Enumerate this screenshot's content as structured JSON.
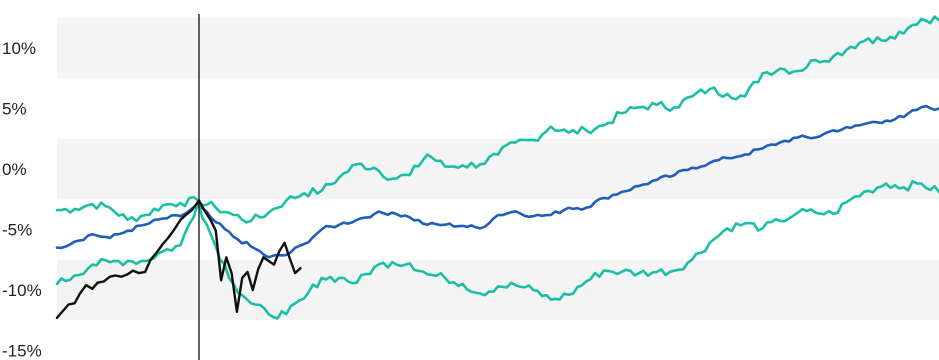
{
  "colors": {
    "band": "#f4f4f4",
    "upper": "#1bbfa5",
    "median": "#1f5fb8",
    "lower": "#1bbfa5",
    "actual": "#111111",
    "marker": "#111111"
  },
  "chart_data": {
    "type": "line",
    "title": "",
    "xlabel": "",
    "ylabel": "",
    "ylim": [
      -15,
      13
    ],
    "xlim": [
      0,
      100
    ],
    "y_ticks": [
      {
        "value": 10,
        "label": "10%"
      },
      {
        "value": 5,
        "label": "5%"
      },
      {
        "value": 0,
        "label": "0%"
      },
      {
        "value": -5,
        "label": "-5%"
      },
      {
        "value": -10,
        "label": "-10%"
      },
      {
        "value": -15,
        "label": "-15%"
      }
    ],
    "bands": [
      [
        7.5,
        12.5
      ],
      [
        -2.5,
        2.5
      ],
      [
        -12.5,
        -7.5
      ]
    ],
    "marker_x": 16.1,
    "series": [
      {
        "key": "upper",
        "points": [
          [
            0,
            -3.4
          ],
          [
            2,
            -3.3
          ],
          [
            4,
            -2.9
          ],
          [
            6,
            -3.2
          ],
          [
            8,
            -4.2
          ],
          [
            10,
            -3.8
          ],
          [
            12,
            -3.0
          ],
          [
            14,
            -2.8
          ],
          [
            16,
            -2.6
          ],
          [
            18,
            -3.2
          ],
          [
            20,
            -3.8
          ],
          [
            22,
            -4.3
          ],
          [
            24,
            -3.6
          ],
          [
            26,
            -2.6
          ],
          [
            28,
            -2.0
          ],
          [
            30,
            -1.8
          ],
          [
            32,
            -0.7
          ],
          [
            34,
            0.4
          ],
          [
            36,
            0.1
          ],
          [
            38,
            -0.8
          ],
          [
            40,
            -0.5
          ],
          [
            42,
            1.2
          ],
          [
            44,
            0.2
          ],
          [
            46,
            0.3
          ],
          [
            48,
            0.4
          ],
          [
            50,
            1.2
          ],
          [
            52,
            2.2
          ],
          [
            54,
            2.4
          ],
          [
            56,
            3.5
          ],
          [
            58,
            3.0
          ],
          [
            60,
            3.2
          ],
          [
            62,
            3.6
          ],
          [
            64,
            4.6
          ],
          [
            66,
            5.1
          ],
          [
            68,
            5.3
          ],
          [
            70,
            5.1
          ],
          [
            72,
            6.0
          ],
          [
            74,
            6.6
          ],
          [
            76,
            6.2
          ],
          [
            78,
            6.0
          ],
          [
            80,
            7.9
          ],
          [
            82,
            8.3
          ],
          [
            84,
            8.1
          ],
          [
            86,
            9.0
          ],
          [
            88,
            9.3
          ],
          [
            90,
            10.1
          ],
          [
            92,
            10.8
          ],
          [
            94,
            10.6
          ],
          [
            96,
            11.2
          ],
          [
            98,
            12.4
          ],
          [
            100,
            12.3
          ]
        ]
      },
      {
        "key": "median",
        "points": [
          [
            0,
            -6.5
          ],
          [
            2,
            -6.0
          ],
          [
            4,
            -5.4
          ],
          [
            6,
            -5.7
          ],
          [
            8,
            -5.1
          ],
          [
            10,
            -4.6
          ],
          [
            12,
            -4.1
          ],
          [
            14,
            -3.9
          ],
          [
            16,
            -3.0
          ],
          [
            18,
            -4.4
          ],
          [
            20,
            -5.6
          ],
          [
            22,
            -6.4
          ],
          [
            24,
            -7.3
          ],
          [
            26,
            -7.1
          ],
          [
            28,
            -6.2
          ],
          [
            30,
            -5.0
          ],
          [
            32,
            -4.6
          ],
          [
            34,
            -4.2
          ],
          [
            36,
            -3.7
          ],
          [
            38,
            -3.6
          ],
          [
            40,
            -4.0
          ],
          [
            42,
            -4.6
          ],
          [
            44,
            -4.6
          ],
          [
            46,
            -4.7
          ],
          [
            48,
            -4.9
          ],
          [
            50,
            -3.8
          ],
          [
            52,
            -3.5
          ],
          [
            54,
            -3.9
          ],
          [
            56,
            -3.8
          ],
          [
            58,
            -3.2
          ],
          [
            60,
            -3.2
          ],
          [
            62,
            -2.4
          ],
          [
            64,
            -1.9
          ],
          [
            66,
            -1.4
          ],
          [
            68,
            -0.9
          ],
          [
            70,
            -0.5
          ],
          [
            72,
            0.1
          ],
          [
            74,
            0.5
          ],
          [
            76,
            0.9
          ],
          [
            78,
            1.2
          ],
          [
            80,
            1.7
          ],
          [
            82,
            2.2
          ],
          [
            84,
            2.6
          ],
          [
            86,
            2.6
          ],
          [
            88,
            3.2
          ],
          [
            90,
            3.4
          ],
          [
            92,
            3.8
          ],
          [
            94,
            4.0
          ],
          [
            96,
            4.3
          ],
          [
            98,
            5.1
          ],
          [
            100,
            5.0
          ]
        ]
      },
      {
        "key": "lower",
        "points": [
          [
            0,
            -9.5
          ],
          [
            2,
            -8.8
          ],
          [
            4,
            -7.9
          ],
          [
            6,
            -7.7
          ],
          [
            8,
            -7.6
          ],
          [
            10,
            -7.6
          ],
          [
            12,
            -6.8
          ],
          [
            14,
            -6.3
          ],
          [
            16,
            -2.8
          ],
          [
            18,
            -6.4
          ],
          [
            20,
            -9.5
          ],
          [
            22,
            -11.1
          ],
          [
            24,
            -12.0
          ],
          [
            26,
            -12.0
          ],
          [
            28,
            -10.7
          ],
          [
            30,
            -9.0
          ],
          [
            32,
            -9.0
          ],
          [
            34,
            -9.4
          ],
          [
            36,
            -8.1
          ],
          [
            38,
            -7.7
          ],
          [
            40,
            -7.8
          ],
          [
            42,
            -8.7
          ],
          [
            44,
            -9.0
          ],
          [
            46,
            -9.5
          ],
          [
            48,
            -10.3
          ],
          [
            50,
            -9.7
          ],
          [
            52,
            -9.6
          ],
          [
            54,
            -10.0
          ],
          [
            56,
            -10.8
          ],
          [
            58,
            -10.4
          ],
          [
            60,
            -9.3
          ],
          [
            62,
            -8.4
          ],
          [
            64,
            -8.5
          ],
          [
            66,
            -8.6
          ],
          [
            68,
            -8.5
          ],
          [
            70,
            -8.4
          ],
          [
            72,
            -7.5
          ],
          [
            74,
            -6.1
          ],
          [
            76,
            -4.9
          ],
          [
            78,
            -4.5
          ],
          [
            80,
            -4.9
          ],
          [
            82,
            -4.3
          ],
          [
            84,
            -3.6
          ],
          [
            86,
            -3.6
          ],
          [
            88,
            -3.7
          ],
          [
            90,
            -2.5
          ],
          [
            92,
            -1.8
          ],
          [
            94,
            -1.2
          ],
          [
            96,
            -1.5
          ],
          [
            98,
            -1.2
          ],
          [
            100,
            -1.9
          ]
        ]
      },
      {
        "key": "actual",
        "points": [
          [
            0,
            -12.3
          ],
          [
            0.7,
            -11.7
          ],
          [
            1.3,
            -11.2
          ],
          [
            2,
            -11.1
          ],
          [
            2.6,
            -10.3
          ],
          [
            3.3,
            -9.6
          ],
          [
            4,
            -9.9
          ],
          [
            4.6,
            -9.4
          ],
          [
            5.3,
            -9.3
          ],
          [
            6,
            -8.9
          ],
          [
            6.6,
            -8.8
          ],
          [
            7.3,
            -8.9
          ],
          [
            8,
            -8.7
          ],
          [
            8.6,
            -8.4
          ],
          [
            9.3,
            -8.6
          ],
          [
            10,
            -8.5
          ],
          [
            10.6,
            -7.5
          ],
          [
            11.3,
            -6.9
          ],
          [
            12,
            -6.2
          ],
          [
            12.6,
            -5.7
          ],
          [
            13.3,
            -5.0
          ],
          [
            14,
            -4.2
          ],
          [
            14.6,
            -3.8
          ],
          [
            15.3,
            -3.4
          ],
          [
            16.1,
            -2.6
          ],
          [
            16.7,
            -3.4
          ],
          [
            17.4,
            -4.2
          ],
          [
            18,
            -5.1
          ],
          [
            18.6,
            -9.2
          ],
          [
            19.2,
            -7.3
          ],
          [
            19.8,
            -8.6
          ],
          [
            20.4,
            -11.8
          ],
          [
            21,
            -9.0
          ],
          [
            21.6,
            -8.5
          ],
          [
            22.2,
            -10.0
          ],
          [
            22.8,
            -8.3
          ],
          [
            23.4,
            -7.3
          ],
          [
            24,
            -7.6
          ],
          [
            24.6,
            -7.9
          ],
          [
            25.2,
            -6.8
          ],
          [
            25.8,
            -6.1
          ],
          [
            26.4,
            -7.4
          ],
          [
            27,
            -8.6
          ],
          [
            27.6,
            -8.2
          ]
        ]
      }
    ]
  }
}
